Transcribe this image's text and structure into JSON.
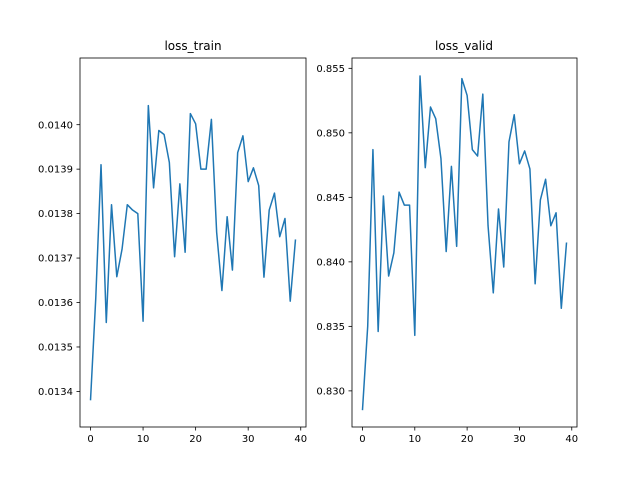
{
  "chart_data": [
    {
      "type": "line",
      "title": "loss_train",
      "xlabel": "",
      "ylabel": "",
      "color": "#1f77b4",
      "xlim": [
        -2,
        41
      ],
      "ylim": [
        0.01332,
        0.01415
      ],
      "xticks": [
        0,
        10,
        20,
        30,
        40
      ],
      "xtick_labels": [
        "0",
        "10",
        "20",
        "30",
        "40"
      ],
      "yticks": [
        0.0134,
        0.0135,
        0.0136,
        0.0137,
        0.0138,
        0.0139,
        0.014
      ],
      "ytick_labels": [
        "0.0134",
        "0.0135",
        "0.0136",
        "0.0137",
        "0.0138",
        "0.0139",
        "0.0140"
      ],
      "grid": false,
      "x": [
        0,
        1,
        2,
        3,
        4,
        5,
        6,
        7,
        8,
        9,
        10,
        11,
        12,
        13,
        14,
        15,
        16,
        17,
        18,
        19,
        20,
        21,
        22,
        23,
        24,
        25,
        26,
        27,
        28,
        29,
        30,
        31,
        32,
        33,
        34,
        35,
        36,
        37,
        38,
        39
      ],
      "y": [
        0.01338,
        0.01361,
        0.01391,
        0.013555,
        0.01382,
        0.013658,
        0.01372,
        0.01382,
        0.013808,
        0.0138,
        0.013558,
        0.014043,
        0.013858,
        0.013987,
        0.013978,
        0.013915,
        0.013703,
        0.013867,
        0.013713,
        0.014025,
        0.014002,
        0.0139,
        0.0139,
        0.014012,
        0.013758,
        0.013627,
        0.013793,
        0.013673,
        0.013937,
        0.013975,
        0.013872,
        0.013903,
        0.013863,
        0.013657,
        0.013808,
        0.013846,
        0.013748,
        0.013789,
        0.013603,
        0.013742
      ]
    },
    {
      "type": "line",
      "title": "loss_valid",
      "xlabel": "",
      "ylabel": "",
      "color": "#1f77b4",
      "xlim": [
        -2,
        41
      ],
      "ylim": [
        0.8272,
        0.8558
      ],
      "xticks": [
        0,
        10,
        20,
        30,
        40
      ],
      "xtick_labels": [
        "0",
        "10",
        "20",
        "30",
        "40"
      ],
      "yticks": [
        0.83,
        0.835,
        0.84,
        0.845,
        0.85,
        0.855
      ],
      "ytick_labels": [
        "0.830",
        "0.835",
        "0.840",
        "0.845",
        "0.850",
        "0.855"
      ],
      "grid": false,
      "x": [
        0,
        1,
        2,
        3,
        4,
        5,
        6,
        7,
        8,
        9,
        10,
        11,
        12,
        13,
        14,
        15,
        16,
        17,
        18,
        19,
        20,
        21,
        22,
        23,
        24,
        25,
        26,
        27,
        28,
        29,
        30,
        31,
        32,
        33,
        34,
        35,
        36,
        37,
        38,
        39
      ],
      "y": [
        0.8285,
        0.835,
        0.8487,
        0.8346,
        0.8451,
        0.8389,
        0.8407,
        0.8454,
        0.8444,
        0.8444,
        0.8343,
        0.8544,
        0.8473,
        0.852,
        0.8511,
        0.848,
        0.8408,
        0.8474,
        0.8412,
        0.8542,
        0.8529,
        0.8487,
        0.8482,
        0.853,
        0.8428,
        0.8376,
        0.8441,
        0.8396,
        0.8493,
        0.8514,
        0.8476,
        0.8486,
        0.8472,
        0.8383,
        0.8448,
        0.8464,
        0.8428,
        0.8438,
        0.8364,
        0.8415
      ]
    }
  ]
}
